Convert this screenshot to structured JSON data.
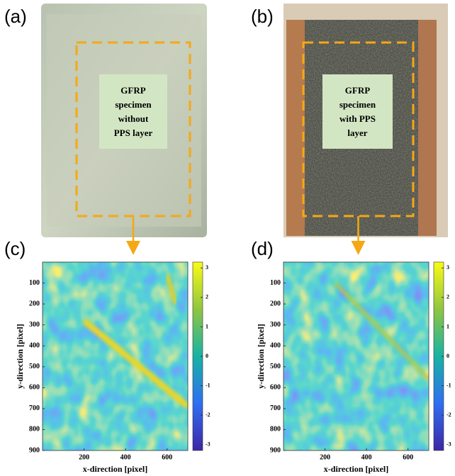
{
  "photos": [
    {
      "label": "(a)",
      "caption": [
        "GFRP",
        "specimen",
        "without",
        "PPS layer"
      ]
    },
    {
      "label": "(b)",
      "caption": [
        "GFRP",
        "specimen",
        "with PPS",
        "layer"
      ]
    }
  ],
  "maps": [
    {
      "label": "(c)",
      "diagonal": true
    },
    {
      "label": "(d)",
      "diagonal": false
    }
  ],
  "axes": {
    "x_label": "x-direction [pixel]",
    "y_label": "y-direction [pixel]",
    "xlim": [
      0,
      700
    ],
    "ylim": [
      0,
      900
    ],
    "xticks": [
      200,
      400,
      600
    ],
    "yticks": [
      100,
      200,
      300,
      400,
      500,
      600,
      700,
      800,
      900
    ],
    "colorbar_lim": [
      -3.2,
      3.2
    ],
    "colorbar_ticks": [
      3,
      2,
      1,
      0,
      -1,
      -2,
      -3
    ]
  }
}
